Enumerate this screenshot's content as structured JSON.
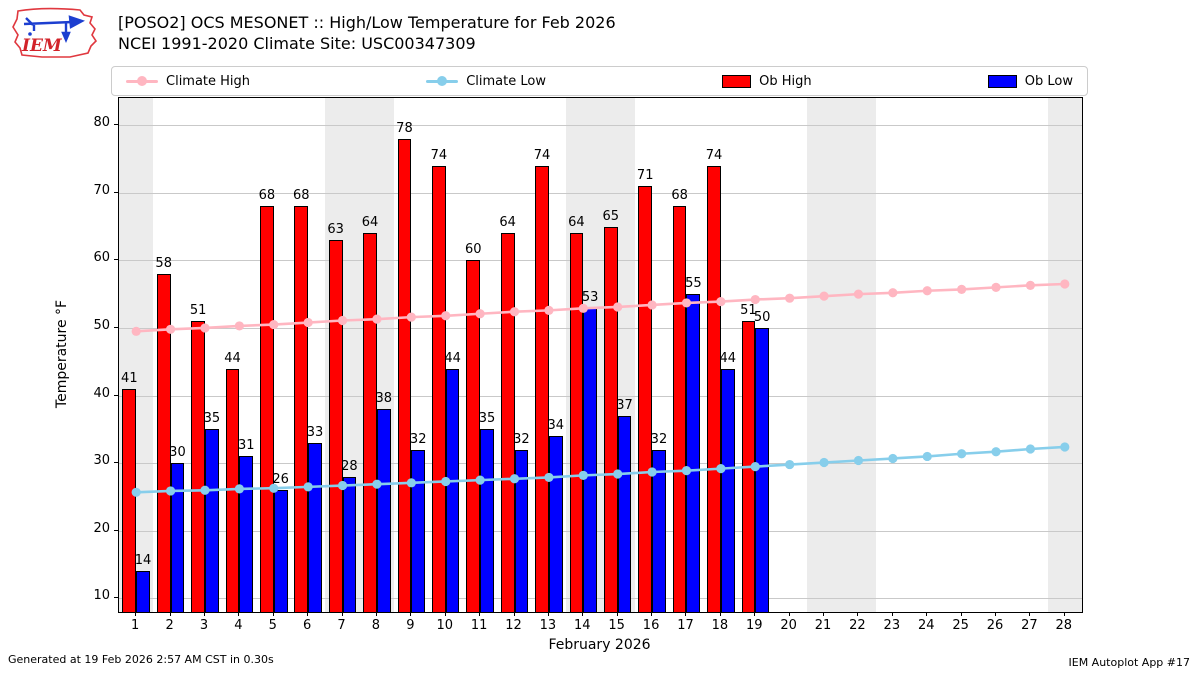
{
  "header": {
    "title_line1": "[POSO2] OCS MESONET :: High/Low Temperature for Feb 2026",
    "title_line2": "NCEI 1991-2020 Climate Site: USC00347309",
    "logo_text": "IEM"
  },
  "legend": [
    {
      "label": "Climate High",
      "type": "line",
      "color": "#ffb6c1"
    },
    {
      "label": "Climate Low",
      "type": "line",
      "color": "#87ceeb"
    },
    {
      "label": "Ob High",
      "type": "patch",
      "color": "#ff0000"
    },
    {
      "label": "Ob Low",
      "type": "patch",
      "color": "#0000ff"
    }
  ],
  "chart_data": {
    "type": "bar",
    "title": "[POSO2] OCS MESONET :: High/Low Temperature for Feb 2026",
    "xlabel": "February 2026",
    "ylabel": "Temperature °F",
    "ylim": [
      8,
      84
    ],
    "yticks": [
      10,
      20,
      30,
      40,
      50,
      60,
      70,
      80
    ],
    "x_days": 28,
    "grid": "horizontal",
    "band_color": "#ececec",
    "grid_color": "#c9c9c9",
    "weekend_bands": [
      [
        0.5,
        1.5
      ],
      [
        6.5,
        8.5
      ],
      [
        13.5,
        15.5
      ],
      [
        20.5,
        22.5
      ],
      [
        27.5,
        28.5
      ]
    ],
    "series": [
      {
        "name": "Ob High",
        "type": "bar",
        "color": "#ff0000",
        "values": [
          41,
          58,
          51,
          44,
          68,
          68,
          63,
          64,
          78,
          74,
          60,
          64,
          74,
          64,
          65,
          71,
          68,
          74,
          51
        ]
      },
      {
        "name": "Ob Low",
        "type": "bar",
        "color": "#0000ff",
        "values": [
          14,
          30,
          35,
          31,
          26,
          33,
          28,
          38,
          32,
          44,
          35,
          32,
          34,
          53,
          37,
          32,
          55,
          44,
          50
        ]
      },
      {
        "name": "Climate High",
        "type": "line",
        "color": "#ffb6c1",
        "values": [
          49.5,
          49.8,
          50.0,
          50.3,
          50.5,
          50.8,
          51.1,
          51.3,
          51.6,
          51.8,
          52.1,
          52.4,
          52.6,
          52.9,
          53.1,
          53.4,
          53.7,
          53.9,
          54.2,
          54.4,
          54.7,
          55.0,
          55.2,
          55.5,
          55.7,
          56.0,
          56.3,
          56.5
        ]
      },
      {
        "name": "Climate Low",
        "type": "line",
        "color": "#87ceeb",
        "values": [
          25.7,
          25.9,
          26.0,
          26.2,
          26.3,
          26.5,
          26.7,
          26.9,
          27.1,
          27.3,
          27.5,
          27.7,
          27.9,
          28.2,
          28.4,
          28.7,
          28.9,
          29.2,
          29.5,
          29.8,
          30.1,
          30.4,
          30.7,
          31.0,
          31.4,
          31.7,
          32.1,
          32.4
        ]
      }
    ]
  },
  "footer": {
    "left": "Generated at 19 Feb 2026 2:57 AM CST in 0.30s",
    "right": "IEM Autoplot App #17"
  }
}
